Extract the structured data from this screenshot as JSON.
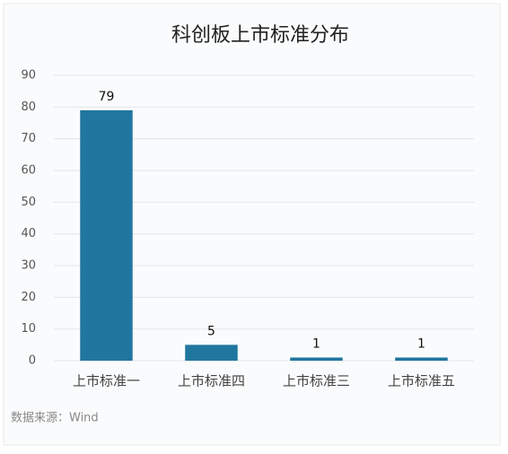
{
  "chart_data": {
    "type": "bar",
    "title": "科创板上市标准分布",
    "categories": [
      "上市标准一",
      "上市标准四",
      "上市标准三",
      "上市标准五"
    ],
    "values": [
      79,
      5,
      1,
      1
    ],
    "color": "#21769f",
    "ylim": [
      0,
      90
    ],
    "yticks": [
      0,
      10,
      20,
      30,
      40,
      50,
      60,
      70,
      80,
      90
    ],
    "grid": true,
    "source": "数据来源：Wind"
  }
}
